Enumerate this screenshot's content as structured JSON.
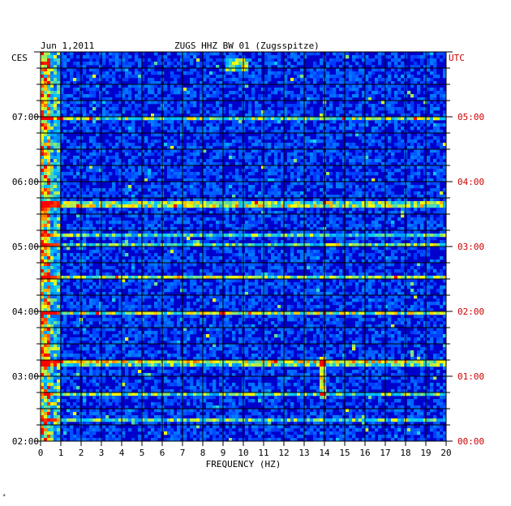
{
  "chart_data": {
    "type": "heatmap",
    "date": "Jun 1,2011",
    "title": "ZUGS HHZ BW 01 (Zugsspitze)",
    "left_timezone": "CES",
    "right_timezone": "UTC",
    "xlabel": "FREQUENCY (HZ)",
    "xlim": [
      0,
      20
    ],
    "x_ticks": [
      "0",
      "1",
      "2",
      "3",
      "4",
      "5",
      "6",
      "7",
      "8",
      "9",
      "10",
      "11",
      "12",
      "13",
      "14",
      "15",
      "16",
      "17",
      "18",
      "19",
      "20"
    ],
    "left_time_ticks": [
      "02:00",
      "03:00",
      "04:00",
      "05:00",
      "06:00",
      "07:00"
    ],
    "right_time_ticks": [
      "00:00",
      "01:00",
      "02:00",
      "03:00",
      "04:00",
      "05:00"
    ],
    "time_range_utc": [
      "00:00",
      "06:00"
    ],
    "colors": {
      "background_low": "#0000cc",
      "grid": "#000000",
      "utc_label": "#cc0000",
      "axis_text": "#000000"
    },
    "features": [
      {
        "desc": "energy band",
        "freq_hz": [
          0,
          1
        ]
      },
      {
        "desc": "narrow line",
        "freq_hz": 13.9,
        "time_utc": [
          "00:40",
          "01:15"
        ]
      },
      {
        "desc": "noise burst",
        "freq_hz": [
          9.2,
          10.2
        ],
        "time_utc": "05:50"
      }
    ]
  },
  "footer_mark": "*"
}
